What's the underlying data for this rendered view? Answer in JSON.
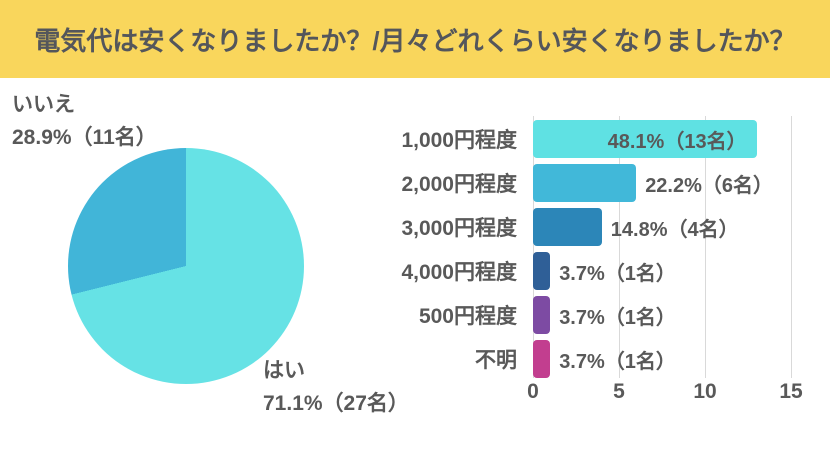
{
  "header": {
    "title": "電気代は安くなりましたか？/月々どれくらい安くなりましたか？",
    "bg_color": "#F9D65C",
    "text_color": "#54565B"
  },
  "chart_data": [
    {
      "type": "pie",
      "question": "電気代は安くなりましたか？",
      "slices": [
        {
          "label": "はい",
          "percent": 71.1,
          "count": 27,
          "display": "71.1%（27名）",
          "color": "#66E2E5"
        },
        {
          "label": "いいえ",
          "percent": 28.9,
          "count": 11,
          "display": "28.9%（11名）",
          "color": "#41B5D8"
        }
      ],
      "start_angle_deg": 0,
      "direction": "clockwise"
    },
    {
      "type": "bar",
      "orientation": "horizontal",
      "question": "月々どれくらい安くなりましたか？",
      "categories": [
        "1,000円程度",
        "2,000円程度",
        "3,000円程度",
        "4,000円程度",
        "500円程度",
        "不明"
      ],
      "values": [
        13,
        6,
        4,
        1,
        1,
        1
      ],
      "percents": [
        48.1,
        22.2,
        14.8,
        3.7,
        3.7,
        3.7
      ],
      "value_labels": [
        "48.1%（13名）",
        "22.2%（6名）",
        "14.8%（4名）",
        "3.7%（1名）",
        "3.7%（1名）",
        "3.7%（1名）"
      ],
      "colors": [
        "#5FE1E3",
        "#41B8D9",
        "#2C86B8",
        "#2F5F97",
        "#7D4BA3",
        "#C23E8F"
      ],
      "xlim": [
        0,
        15
      ],
      "xticks": [
        0,
        5,
        10,
        15
      ],
      "grid": true,
      "gridline_color": "#D9D9D9",
      "label_color": "#595959"
    }
  ]
}
